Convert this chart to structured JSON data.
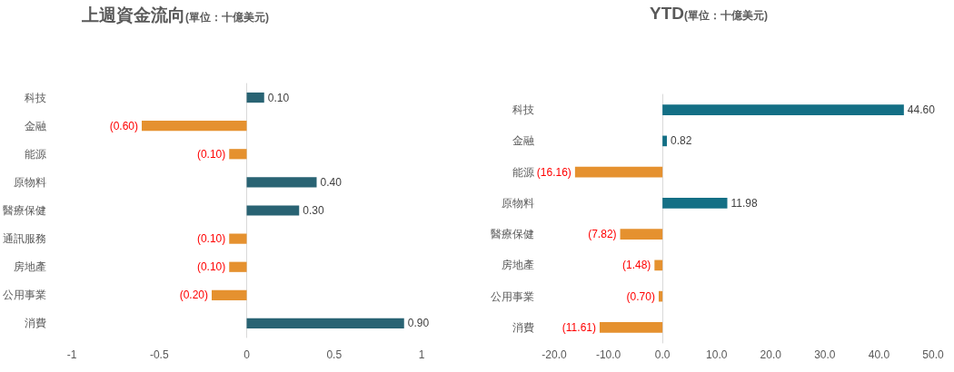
{
  "chart_data": [
    {
      "type": "bar",
      "orientation": "horizontal",
      "title": "上週資金流向",
      "subtitle": "(單位：十億美元)",
      "categories": [
        "科技",
        "金融",
        "能源",
        "原物料",
        "醫療保健",
        "通訊服務",
        "房地產",
        "公用事業",
        "消費"
      ],
      "values": [
        0.1,
        -0.6,
        -0.1,
        0.4,
        0.3,
        -0.1,
        -0.1,
        -0.2,
        0.9
      ],
      "colors": [
        "#296373",
        "#e5912f",
        "#e5912f",
        "#296373",
        "#296373",
        "#e5912f",
        "#e5912f",
        "#e5912f",
        "#296373"
      ],
      "value_labels": [
        "0.10",
        "(0.60)",
        "(0.10)",
        "0.40",
        "0.30",
        "(0.10)",
        "(0.10)",
        "(0.20)",
        "0.90"
      ],
      "xlim": [
        -1,
        1
      ],
      "xticks": [
        -1,
        -0.5,
        0,
        0.5,
        1
      ]
    },
    {
      "type": "bar",
      "orientation": "horizontal",
      "title": "YTD",
      "subtitle": "(單位：十億美元)",
      "categories": [
        "科技",
        "金融",
        "能源",
        "原物料",
        "醫療保健",
        "房地產",
        "公用事業",
        "消費"
      ],
      "values": [
        44.6,
        0.82,
        -16.16,
        11.98,
        -7.82,
        -1.48,
        -0.7,
        -11.61
      ],
      "colors": [
        "#136f85",
        "#136f85",
        "#e5912f",
        "#136f85",
        "#e5912f",
        "#e5912f",
        "#e5912f",
        "#e5912f"
      ],
      "value_labels": [
        "44.60",
        "0.82",
        "(16.16)",
        "11.98",
        "(7.82)",
        "(1.48)",
        "(0.70)",
        "(11.61)"
      ],
      "xlim": [
        -20,
        50
      ],
      "xticks": [
        {
          "value": -20,
          "label": "-20.0"
        },
        {
          "value": -10,
          "label": "-10.0"
        },
        {
          "value": 0,
          "label": "0.0"
        },
        {
          "value": 10,
          "label": "10.0"
        },
        {
          "value": 20,
          "label": "20.0"
        },
        {
          "value": 30,
          "label": "30.0"
        },
        {
          "value": 40,
          "label": "40.0"
        },
        {
          "value": 50,
          "label": "50.0"
        }
      ]
    }
  ]
}
